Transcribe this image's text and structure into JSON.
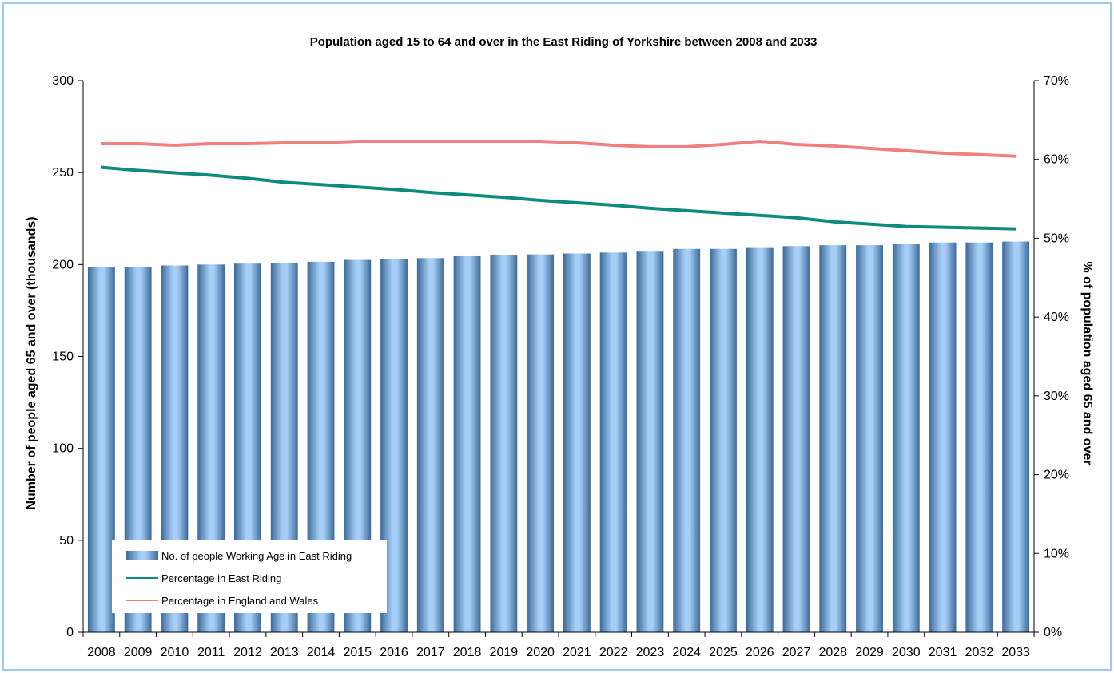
{
  "chart_data": {
    "type": "bar",
    "title": "Population aged 15 to 64 and over in the East Riding of Yorkshire between  2008  and 2033",
    "ylabel_left": "Number of people aged 65 and over (thousands)",
    "ylabel_right": "% of population aged 65 and over",
    "ylim_left": [
      0,
      300
    ],
    "yticks_left": [
      "0",
      "50",
      "100",
      "150",
      "200",
      "250",
      "300"
    ],
    "ylim_right": [
      0,
      70
    ],
    "yticks_right": [
      "0%",
      "10%",
      "20%",
      "30%",
      "40%",
      "50%",
      "60%",
      "70%"
    ],
    "categories": [
      "2008",
      "2009",
      "2010",
      "2011",
      "2012",
      "2013",
      "2014",
      "2015",
      "2016",
      "2017",
      "2018",
      "2019",
      "2020",
      "2021",
      "2022",
      "2023",
      "2024",
      "2025",
      "2026",
      "2027",
      "2028",
      "2029",
      "2030",
      "2031",
      "2032",
      "2033"
    ],
    "series": [
      {
        "name": "No. of people Working Age in East Riding",
        "kind": "bar",
        "axis": "left",
        "color": "#8db8e2",
        "values": [
          198.5,
          198.5,
          199.5,
          200,
          200.5,
          201,
          201.5,
          202.5,
          203,
          203.5,
          204.5,
          205,
          205.5,
          206,
          206.5,
          207,
          208.5,
          208.5,
          209,
          210,
          210.5,
          210.5,
          211,
          212,
          212,
          212.5
        ]
      },
      {
        "name": "Percentage in East Riding",
        "kind": "line",
        "axis": "right",
        "color": "#0e8a7e",
        "values": [
          59.0,
          58.6,
          58.3,
          58.0,
          57.6,
          57.1,
          56.8,
          56.5,
          56.2,
          55.8,
          55.5,
          55.2,
          54.8,
          54.5,
          54.2,
          53.8,
          53.5,
          53.2,
          52.9,
          52.6,
          52.1,
          51.8,
          51.5,
          51.4,
          51.3,
          51.2
        ]
      },
      {
        "name": "Percentage in England and Wales",
        "kind": "line",
        "axis": "right",
        "color": "#f08080",
        "values": [
          62.0,
          62.0,
          61.8,
          62.0,
          62.0,
          62.1,
          62.1,
          62.3,
          62.3,
          62.3,
          62.3,
          62.3,
          62.3,
          62.1,
          61.8,
          61.6,
          61.6,
          61.9,
          62.3,
          61.9,
          61.7,
          61.4,
          61.1,
          60.8,
          60.6,
          60.4
        ]
      }
    ],
    "legend_position": "bottom-left"
  }
}
